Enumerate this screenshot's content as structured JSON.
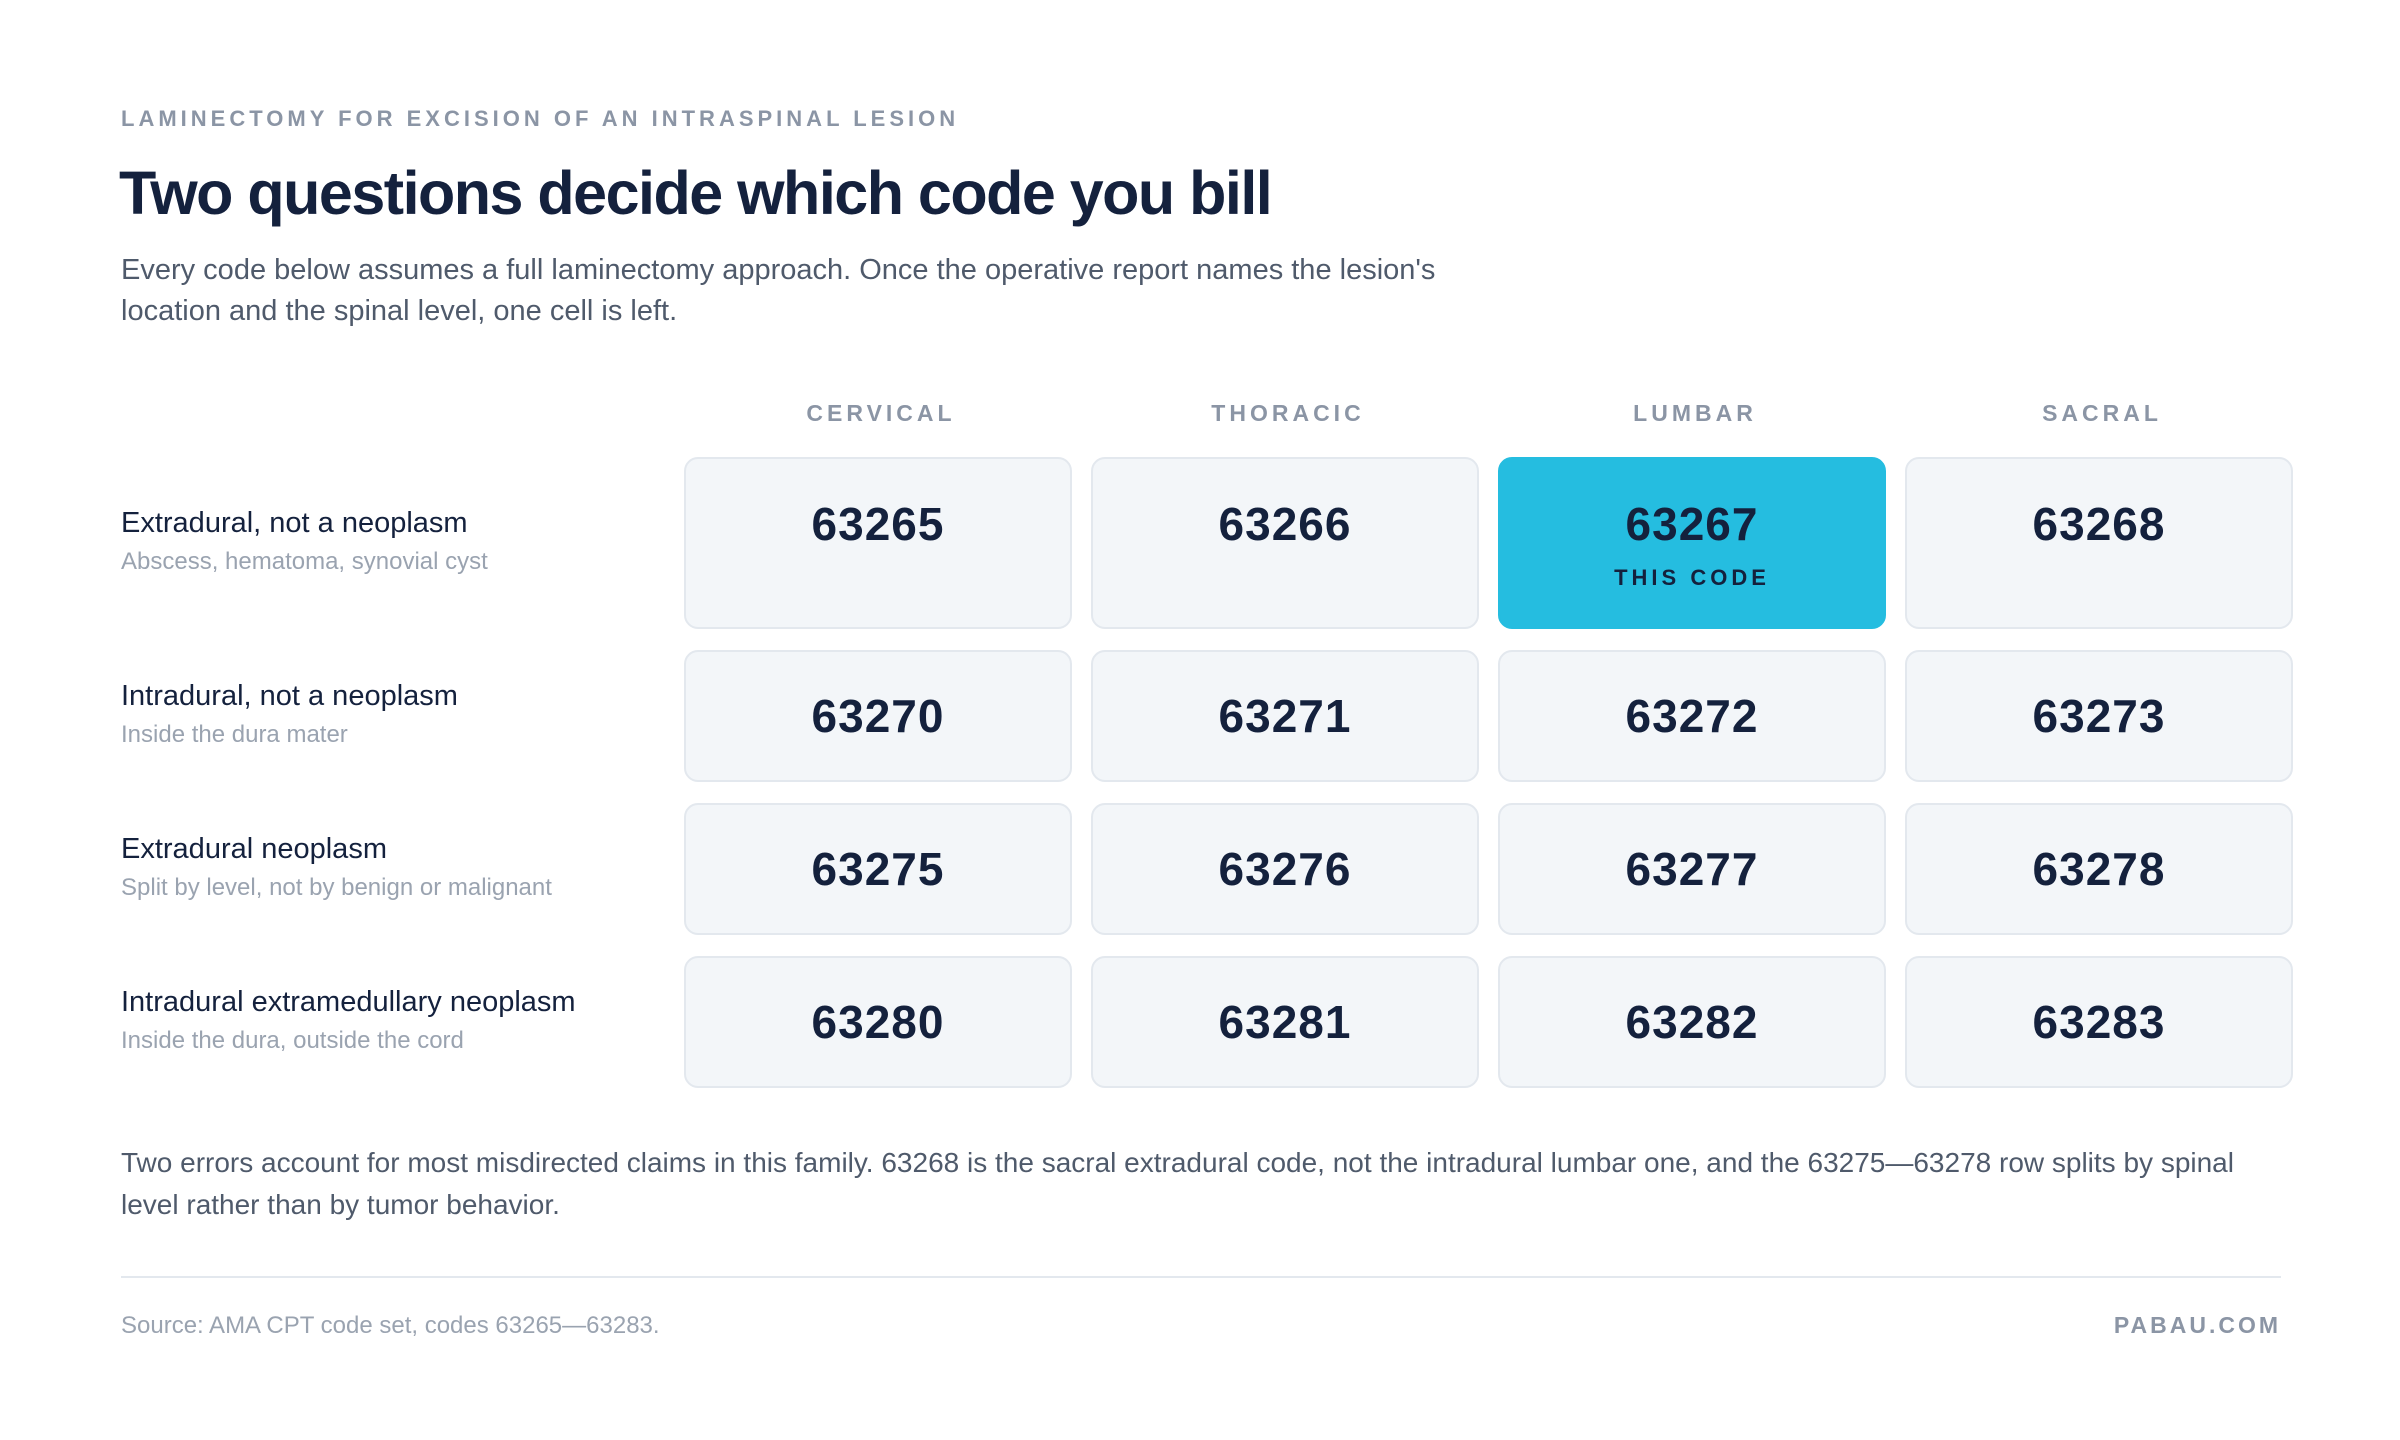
{
  "header": {
    "eyebrow": "LAMINECTOMY FOR EXCISION OF AN INTRASPINAL LESION",
    "title": "Two questions decide which code you bill",
    "subtitle": "Every code below assumes a full laminectomy approach. Once the operative report names the lesion's location and the spinal level, one cell is left."
  },
  "grid": {
    "columns": [
      "CERVICAL",
      "THORACIC",
      "LUMBAR",
      "SACRAL"
    ],
    "highlight_label": "THIS CODE",
    "highlight_color": "#25bde0",
    "rows": [
      {
        "title": "Extradural, not a neoplasm",
        "subtitle": "Abscess, hematoma, synovial cyst",
        "codes": [
          "63265",
          "63266",
          "63267",
          "63268"
        ]
      },
      {
        "title": "Intradural, not a neoplasm",
        "subtitle": "Inside the dura mater",
        "codes": [
          "63270",
          "63271",
          "63272",
          "63273"
        ]
      },
      {
        "title": "Extradural neoplasm",
        "subtitle": "Split by level, not by benign or malignant",
        "codes": [
          "63275",
          "63276",
          "63277",
          "63278"
        ]
      },
      {
        "title": "Intradural extramedullary neoplasm",
        "subtitle": "Inside the dura, outside the cord",
        "codes": [
          "63280",
          "63281",
          "63282",
          "63283"
        ]
      }
    ]
  },
  "footer": {
    "note": "Two errors account for most misdirected claims in this family. 63268 is the sacral extradural code, not the intradural lumbar one, and the 63275—63278 row splits by spinal level rather than by tumor behavior.",
    "source": "Source: AMA CPT code set, codes 63265—63283.",
    "brand": "PABAU.COM"
  }
}
